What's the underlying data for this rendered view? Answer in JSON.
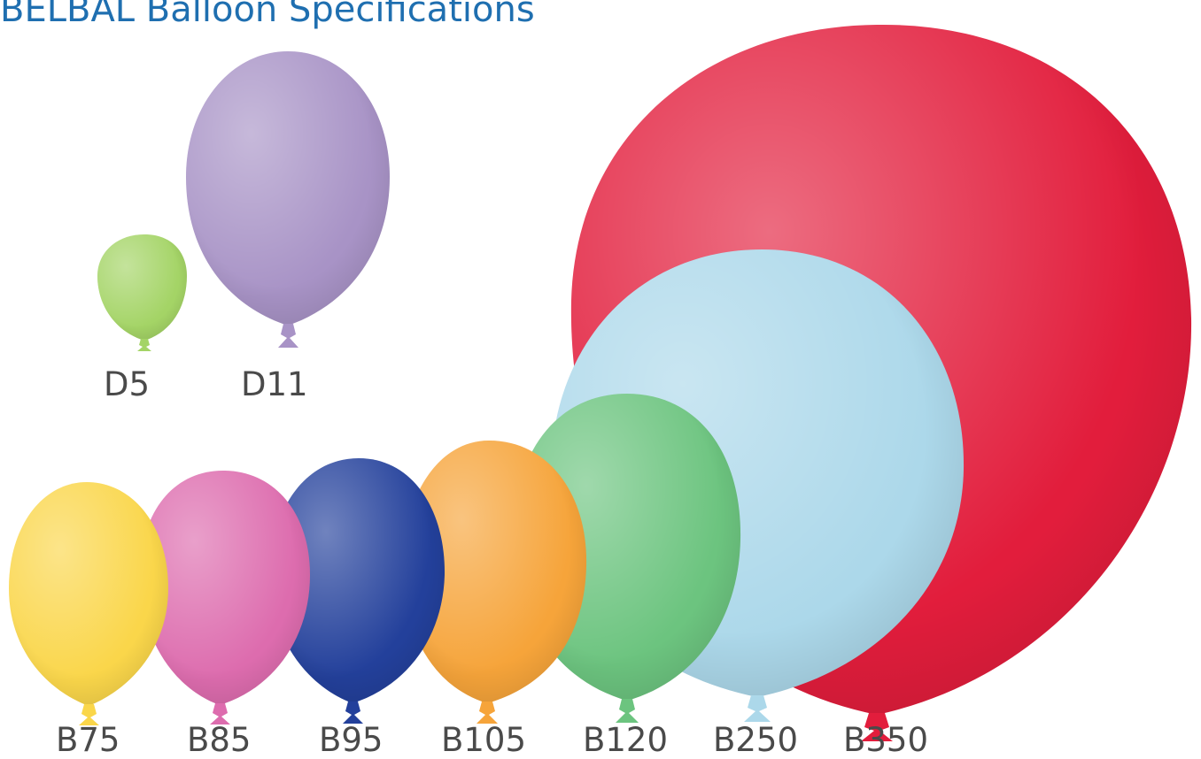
{
  "title": "BELBAL Balloon Specifications",
  "label_color": "#4a4a4a",
  "title_color": "#1f6fb0",
  "balloons": [
    {
      "name": "D5",
      "color": "#a4d466"
    },
    {
      "name": "D11",
      "color": "#a893c6"
    },
    {
      "name": "B75",
      "color": "#fad64a"
    },
    {
      "name": "B85",
      "color": "#dd6cae"
    },
    {
      "name": "B95",
      "color": "#23409b"
    },
    {
      "name": "B105",
      "color": "#f6a43a"
    },
    {
      "name": "B120",
      "color": "#6cc47f"
    },
    {
      "name": "B250",
      "color": "#acd8ea"
    },
    {
      "name": "B350",
      "color": "#e21d3c"
    }
  ]
}
